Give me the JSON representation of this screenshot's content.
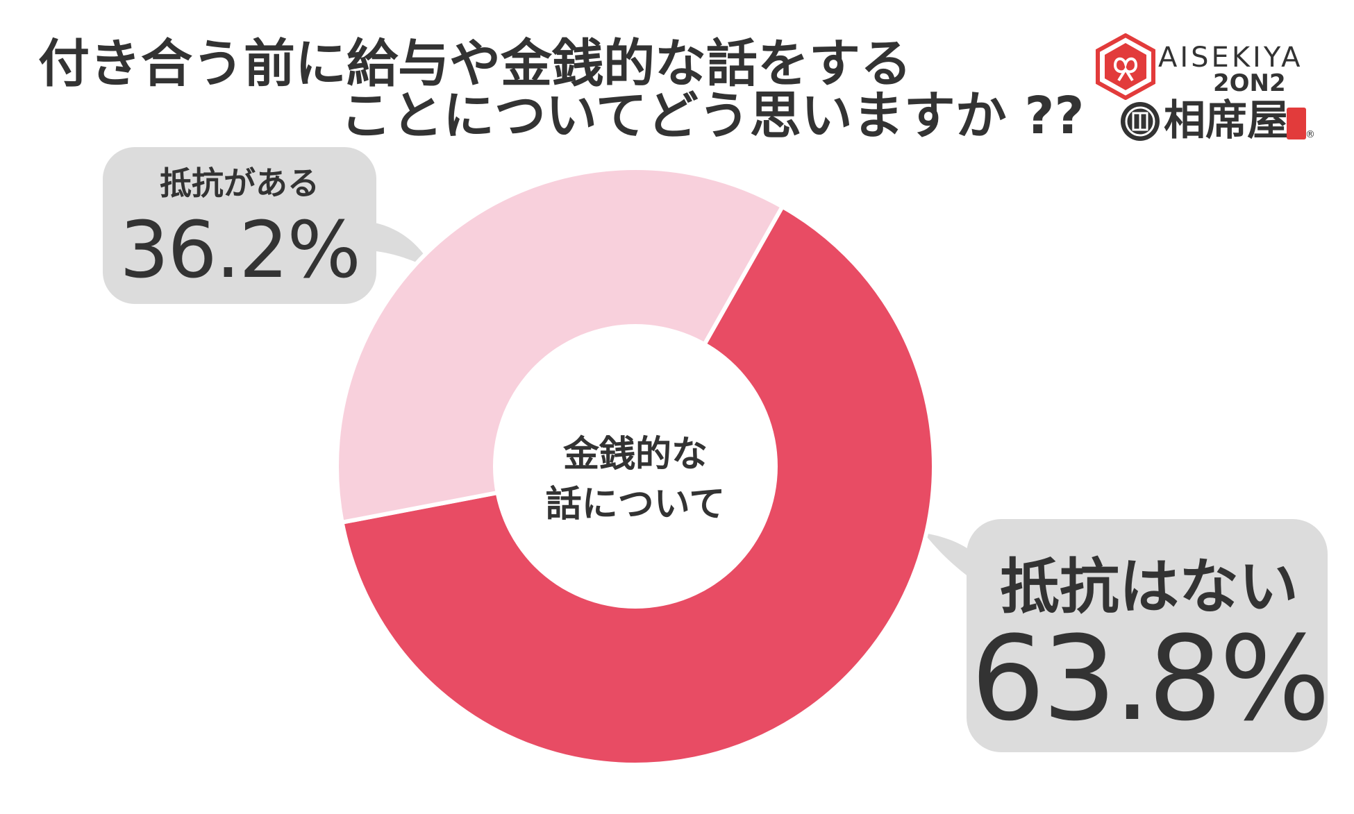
{
  "title": {
    "line1": "付き合う前に給与や金銭的な話をする",
    "line2": "ことについてどう思いますか ??"
  },
  "logo": {
    "name_latin": "AISEKIYA",
    "subtitle": "2ON2",
    "name_kanji": "相席屋",
    "registered": "®",
    "brand_color": "#e23b3b"
  },
  "center_label": {
    "line1": "金銭的な",
    "line2": "話について"
  },
  "callouts": {
    "resist": {
      "name": "抵抗がある",
      "value": "36.2%"
    },
    "no_resist": {
      "name": "抵抗はない",
      "value": "63.8%"
    }
  },
  "chart_data": {
    "type": "pie",
    "donut": true,
    "title": "付き合う前に給与や金銭的な話をすることについてどう思いますか ??",
    "center_text": "金銭的な話について",
    "slices": [
      {
        "label": "抵抗はない",
        "value": 63.8,
        "color": "#e84c64"
      },
      {
        "label": "抵抗がある",
        "value": 36.2,
        "color": "#f8d0dc"
      }
    ],
    "start_angle_deg": 29.5,
    "direction": "clockwise"
  },
  "colors": {
    "callout_bg": "#dcdcdc",
    "text": "#333333",
    "background": "#ffffff"
  }
}
